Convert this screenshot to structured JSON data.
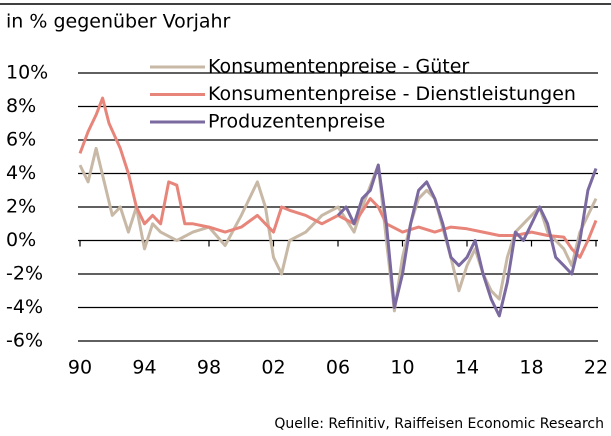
{
  "chart_data": {
    "type": "line",
    "title": "in % gegenüber Vorjahr",
    "source": "Quelle: Refinitiv, Raiffeisen Economic Research",
    "xlim": [
      1990,
      2022
    ],
    "xticks": [
      {
        "value": 1990,
        "label": "90"
      },
      {
        "value": 1994,
        "label": "94"
      },
      {
        "value": 1998,
        "label": "98"
      },
      {
        "value": 2002,
        "label": "02"
      },
      {
        "value": 2006,
        "label": "06"
      },
      {
        "value": 2010,
        "label": "10"
      },
      {
        "value": 2014,
        "label": "14"
      },
      {
        "value": 2018,
        "label": "18"
      },
      {
        "value": 2022,
        "label": "22"
      }
    ],
    "ylim": [
      -6,
      10
    ],
    "yticks": [
      {
        "value": -6,
        "label": "-6%"
      },
      {
        "value": -4,
        "label": "-4%"
      },
      {
        "value": -2,
        "label": "-2%"
      },
      {
        "value": 0,
        "label": "0%"
      },
      {
        "value": 2,
        "label": "2%"
      },
      {
        "value": 4,
        "label": "4%"
      },
      {
        "value": 6,
        "label": "6%"
      },
      {
        "value": 8,
        "label": "8%"
      },
      {
        "value": 10,
        "label": "10%"
      }
    ],
    "grid": true,
    "series": [
      {
        "name": "Konsumentenpreise - Güter",
        "color": "#c8b9a6",
        "x": [
          1990,
          1990.5,
          1991,
          1991.5,
          1992,
          1992.5,
          1993,
          1993.5,
          1994,
          1994.5,
          1995,
          1996,
          1997,
          1998,
          1999,
          2000,
          2001,
          2001.5,
          2002,
          2002.5,
          2003,
          2004,
          2005,
          2006,
          2007,
          2007.5,
          2008.5,
          2009,
          2009.5,
          2010,
          2010.5,
          2011,
          2011.5,
          2012,
          2013,
          2013.5,
          2014,
          2014.5,
          2015,
          2015.5,
          2016,
          2016.5,
          2017,
          2018,
          2018.5,
          2019,
          2019.5,
          2020,
          2020.5,
          2021,
          2021.5,
          2022
        ],
        "values": [
          4.5,
          3.5,
          5.5,
          3.5,
          1.5,
          2,
          0.5,
          2,
          -0.5,
          1,
          0.5,
          0,
          0.5,
          0.8,
          -0.3,
          1.5,
          3.5,
          2,
          -1,
          -2,
          0,
          0.5,
          1.5,
          2,
          0.5,
          2,
          4.5,
          0,
          -4.2,
          -1,
          1,
          2.5,
          3,
          2.5,
          -1,
          -3,
          -1.5,
          -0.5,
          -2,
          -3,
          -3.5,
          -1,
          0.5,
          1.5,
          2,
          0.5,
          0,
          -0.5,
          -1.5,
          0.5,
          1.5,
          2.5
        ]
      },
      {
        "name": "Konsumentenpreise - Dienstleistungen",
        "color": "#e8857a",
        "x": [
          1990,
          1990.5,
          1991,
          1991.4,
          1991.8,
          1992.5,
          1993,
          1993.5,
          1994,
          1994.5,
          1995,
          1995.5,
          1996,
          1996.5,
          1997,
          1998,
          1999,
          2000,
          2001,
          2001.5,
          2002,
          2002.5,
          2003,
          2004,
          2005,
          2006,
          2007,
          2008,
          2008.5,
          2009,
          2010,
          2011,
          2012,
          2013,
          2014,
          2015,
          2016,
          2017,
          2018,
          2019,
          2020,
          2020.5,
          2021,
          2021.5,
          2022
        ],
        "values": [
          5.2,
          6.5,
          7.5,
          8.5,
          7,
          5.5,
          4,
          2,
          1,
          1.5,
          1,
          3.5,
          3.3,
          1,
          1,
          0.8,
          0.5,
          0.8,
          1.5,
          1,
          0.5,
          2,
          1.8,
          1.5,
          1,
          1.5,
          1,
          2.5,
          2,
          1,
          0.5,
          0.8,
          0.5,
          0.8,
          0.7,
          0.5,
          0.3,
          0.3,
          0.5,
          0.3,
          0.2,
          -0.5,
          -1,
          0,
          1.2
        ]
      },
      {
        "name": "Produzentenpreise",
        "color": "#7b6aa0",
        "x": [
          2006,
          2006.5,
          2007,
          2007.5,
          2008,
          2008.5,
          2009,
          2009.5,
          2010,
          2010.5,
          2011,
          2011.5,
          2012,
          2012.5,
          2013,
          2013.5,
          2014,
          2014.5,
          2015,
          2015.5,
          2016,
          2016.5,
          2017,
          2017.5,
          2018,
          2018.5,
          2019,
          2019.5,
          2020,
          2020.5,
          2021,
          2021.5,
          2022
        ],
        "values": [
          1.5,
          2,
          1,
          2.5,
          3,
          4.5,
          1,
          -4,
          -2,
          1,
          3,
          3.5,
          2.5,
          1,
          -1,
          -1.5,
          -1,
          0,
          -2,
          -3.5,
          -4.5,
          -2.5,
          0.5,
          0,
          1,
          2,
          1,
          -1,
          -1.5,
          -2,
          0,
          3,
          4.3
        ]
      }
    ]
  }
}
